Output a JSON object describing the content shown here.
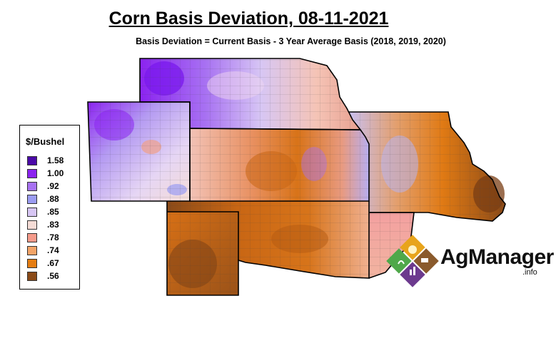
{
  "title": "Corn Basis Deviation, 08-11-2021",
  "subtitle": "Basis Deviation = Current Basis - 3 Year Average Basis (2018, 2019, 2020)",
  "legend": {
    "title": "$/Bushel",
    "items": [
      {
        "label": "1.58",
        "color": "#4b0aa8"
      },
      {
        "label": "1.00",
        "color": "#8b23f0"
      },
      {
        "label": ".92",
        "color": "#a872f2"
      },
      {
        "label": ".88",
        "color": "#9b9cf2"
      },
      {
        "label": ".85",
        "color": "#d7c6f4"
      },
      {
        "label": ".83",
        "color": "#f5dcd6"
      },
      {
        "label": ".78",
        "color": "#f59a8a"
      },
      {
        "label": ".74",
        "color": "#f3a468"
      },
      {
        "label": ".67",
        "color": "#e57d12"
      },
      {
        "label": ".56",
        "color": "#8a4a18"
      }
    ]
  },
  "logo": {
    "text": "AgManager",
    "sub": ".info"
  }
}
